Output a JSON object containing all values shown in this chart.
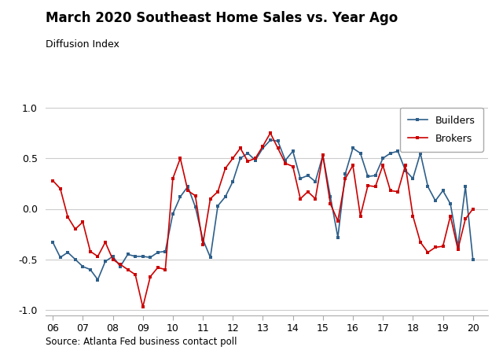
{
  "title": "March 2020 Southeast Home Sales vs. Year Ago",
  "subtitle": "Diffusion Index",
  "source": "Source: Atlanta Fed business contact poll",
  "builders_color": "#2E5F8A",
  "brokers_color": "#CC0000",
  "background_color": "#FFFFFF",
  "ylim": [
    -1.05,
    1.05
  ],
  "yticks": [
    -1.0,
    -0.5,
    0.0,
    0.5,
    1.0
  ],
  "xtick_labels": [
    "06",
    "07",
    "08",
    "09",
    "10",
    "11",
    "12",
    "13",
    "14",
    "15",
    "16",
    "17",
    "18",
    "19",
    "20"
  ],
  "builders_x": [
    2006.0,
    2006.25,
    2006.5,
    2006.75,
    2007.0,
    2007.25,
    2007.5,
    2007.75,
    2008.0,
    2008.25,
    2008.5,
    2008.75,
    2009.0,
    2009.25,
    2009.5,
    2009.75,
    2010.0,
    2010.25,
    2010.5,
    2010.75,
    2011.0,
    2011.25,
    2011.5,
    2011.75,
    2012.0,
    2012.25,
    2012.5,
    2012.75,
    2013.0,
    2013.25,
    2013.5,
    2013.75,
    2014.0,
    2014.25,
    2014.5,
    2014.75,
    2015.0,
    2015.25,
    2015.5,
    2015.75,
    2016.0,
    2016.25,
    2016.5,
    2016.75,
    2017.0,
    2017.25,
    2017.5,
    2017.75,
    2018.0,
    2018.25,
    2018.5,
    2018.75,
    2019.0,
    2019.25,
    2019.5,
    2019.75,
    2020.0
  ],
  "builders_y": [
    -0.33,
    -0.48,
    -0.43,
    -0.5,
    -0.57,
    -0.6,
    -0.7,
    -0.52,
    -0.47,
    -0.57,
    -0.45,
    -0.47,
    -0.47,
    -0.48,
    -0.43,
    -0.42,
    -0.05,
    0.12,
    0.22,
    0.02,
    -0.3,
    -0.48,
    0.03,
    0.12,
    0.27,
    0.5,
    0.55,
    0.48,
    0.6,
    0.68,
    0.67,
    0.48,
    0.57,
    0.3,
    0.33,
    0.27,
    0.53,
    0.12,
    -0.28,
    0.35,
    0.6,
    0.55,
    0.32,
    0.33,
    0.5,
    0.55,
    0.57,
    0.38,
    0.3,
    0.55,
    0.22,
    0.08,
    0.18,
    0.05,
    -0.37,
    0.22,
    -0.5
  ],
  "brokers_x": [
    2006.0,
    2006.25,
    2006.5,
    2006.75,
    2007.0,
    2007.25,
    2007.5,
    2007.75,
    2008.0,
    2008.25,
    2008.5,
    2008.75,
    2009.0,
    2009.25,
    2009.5,
    2009.75,
    2010.0,
    2010.25,
    2010.5,
    2010.75,
    2011.0,
    2011.25,
    2011.5,
    2011.75,
    2012.0,
    2012.25,
    2012.5,
    2012.75,
    2013.0,
    2013.25,
    2013.5,
    2013.75,
    2014.0,
    2014.25,
    2014.5,
    2014.75,
    2015.0,
    2015.25,
    2015.5,
    2015.75,
    2016.0,
    2016.25,
    2016.5,
    2016.75,
    2017.0,
    2017.25,
    2017.5,
    2017.75,
    2018.0,
    2018.25,
    2018.5,
    2018.75,
    2019.0,
    2019.25,
    2019.5,
    2019.75,
    2020.0
  ],
  "brokers_y": [
    0.28,
    0.2,
    -0.08,
    -0.2,
    -0.13,
    -0.42,
    -0.47,
    -0.33,
    -0.5,
    -0.55,
    -0.6,
    -0.65,
    -0.97,
    -0.67,
    -0.58,
    -0.6,
    0.3,
    0.5,
    0.18,
    0.13,
    -0.35,
    0.1,
    0.17,
    0.4,
    0.5,
    0.6,
    0.47,
    0.5,
    0.62,
    0.75,
    0.6,
    0.45,
    0.42,
    0.1,
    0.17,
    0.1,
    0.53,
    0.05,
    -0.12,
    0.3,
    0.43,
    -0.07,
    0.23,
    0.22,
    0.43,
    0.18,
    0.17,
    0.43,
    -0.07,
    -0.33,
    -0.43,
    -0.38,
    -0.37,
    -0.07,
    -0.4,
    -0.1,
    0.0
  ]
}
